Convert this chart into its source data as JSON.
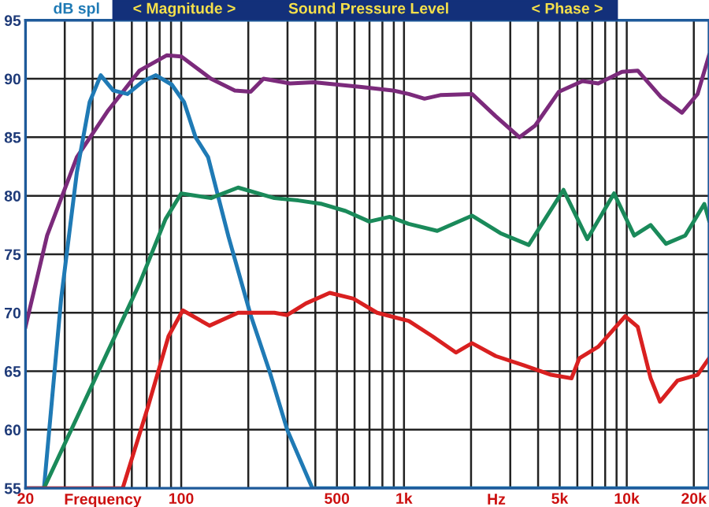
{
  "chart_data": {
    "type": "line",
    "title": "Sound Pressure Level",
    "ylabel": "dB spl",
    "xlabel": "Frequency",
    "annotations": [
      "< Magnitude >",
      "< Phase >",
      "Hz"
    ],
    "log": "x",
    "grid": true,
    "marker": "none",
    "line_style": "solid",
    "xlim": [
      20,
      23400
    ],
    "ylim": [
      55,
      95
    ],
    "xticks": [
      20,
      {
        "value": 30,
        "label": null
      },
      {
        "value": 40,
        "label": null
      },
      {
        "value": 50,
        "label": null
      },
      {
        "value": 60,
        "label": null
      },
      {
        "value": 70,
        "label": null
      },
      {
        "value": 80,
        "label": null
      },
      {
        "value": 90,
        "label": null
      },
      100,
      {
        "value": 200,
        "label": null
      },
      {
        "value": 300,
        "label": null
      },
      {
        "value": 400,
        "label": null
      },
      500,
      {
        "value": 600,
        "label": null
      },
      {
        "value": 700,
        "label": null
      },
      {
        "value": 800,
        "label": null
      },
      {
        "value": 900,
        "label": null
      },
      {
        "value": 1000,
        "label": "1k"
      },
      {
        "value": 2000,
        "label": null
      },
      {
        "value": 3000,
        "label": null
      },
      {
        "value": 4000,
        "label": null
      },
      {
        "value": 5000,
        "label": "5k"
      },
      {
        "value": 6000,
        "label": null
      },
      {
        "value": 7000,
        "label": null
      },
      {
        "value": 8000,
        "label": null
      },
      {
        "value": 9000,
        "label": null
      },
      {
        "value": 10000,
        "label": "10k"
      },
      {
        "value": 20000,
        "label": "20k"
      }
    ],
    "yticks": [
      55,
      60,
      65,
      70,
      75,
      80,
      85,
      90,
      95
    ],
    "series": [
      {
        "color": "#7b2a7b",
        "x": [
          20,
          25,
          34,
          47,
          65,
          86,
          100,
          136,
          174,
          205,
          234,
          308,
          394,
          644,
          892,
          1050,
          1236,
          1455,
          2020,
          2580,
          3300,
          3880,
          4960,
          6330,
          7450,
          9520,
          11200,
          14300,
          17700,
          20800,
          23400
        ],
        "values": [
          68.8,
          76.6,
          83.3,
          87.3,
          90.7,
          92.0,
          91.9,
          90.0,
          89.0,
          88.9,
          90.0,
          89.6,
          89.7,
          89.3,
          89.0,
          88.7,
          88.3,
          88.6,
          88.7,
          86.8,
          85.0,
          86.0,
          88.9,
          89.8,
          89.6,
          90.6,
          90.7,
          88.4,
          87.1,
          88.7,
          92.0
        ]
      },
      {
        "color": "#1f7ab5",
        "x": [
          20,
          24.2,
          28.9,
          34,
          38.8,
          43.5,
          49.5,
          57.4,
          67.6,
          77,
          90.7,
          103,
          116,
          132,
          163,
          205,
          249,
          299,
          388,
          23400
        ],
        "values": [
          55,
          55,
          71.2,
          82,
          88,
          90.3,
          89.0,
          88.7,
          89.8,
          90.3,
          89.5,
          88,
          85,
          83.3,
          76.5,
          69.8,
          65,
          60,
          55,
          55
        ]
      },
      {
        "color": "#1a8a5a",
        "x": [
          24.2,
          40,
          65,
          85,
          100,
          136,
          180,
          262,
          335,
          428,
          547,
          698,
          863,
          1050,
          1410,
          2020,
          2710,
          3630,
          5200,
          6650,
          8770,
          10800,
          12800,
          15000,
          18300,
          22300,
          23400
        ],
        "values": [
          55,
          63.9,
          72.5,
          78,
          80.2,
          79.8,
          80.7,
          79.8,
          79.6,
          79.3,
          78.7,
          77.8,
          78.2,
          77.6,
          77.0,
          78.3,
          76.8,
          75.8,
          80.5,
          76.3,
          80.2,
          76.6,
          77.5,
          75.9,
          76.6,
          79.3,
          77.9
        ]
      },
      {
        "color": "#d92020",
        "x": [
          20,
          54.6,
          71,
          87.7,
          101.6,
          134,
          180,
          262,
          299,
          363,
          464,
          593,
          757,
          1050,
          1340,
          1710,
          2020,
          2580,
          3460,
          4570,
          5650,
          6120,
          7450,
          9840,
          11200,
          12800,
          14100,
          16900,
          20800,
          23400
        ],
        "values": [
          55,
          55,
          62,
          68,
          70.2,
          68.9,
          70,
          70,
          69.8,
          70.8,
          71.7,
          71.2,
          70,
          69.3,
          68,
          66.6,
          67.4,
          66.3,
          65.5,
          64.7,
          64.4,
          66.1,
          67.1,
          69.7,
          68.8,
          64.4,
          62.4,
          64.2,
          64.7,
          66.1
        ]
      }
    ]
  }
}
